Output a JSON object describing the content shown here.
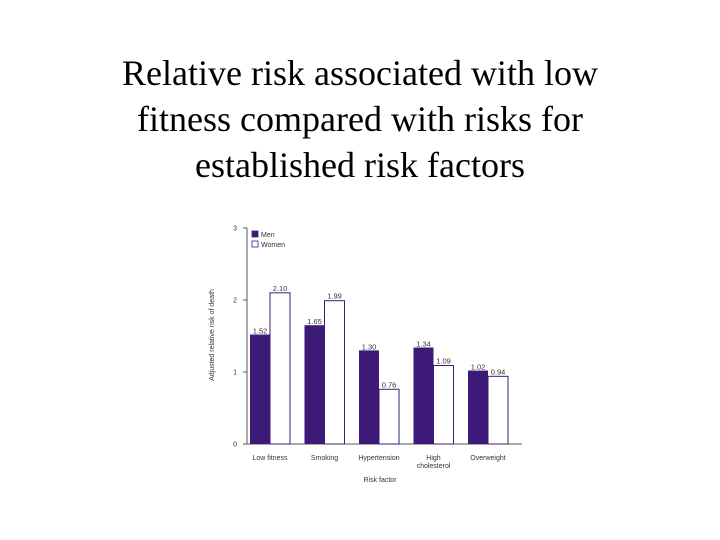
{
  "slide": {
    "title_lines": [
      "Relative risk associated with low",
      "fitness compared with risks for",
      "established risk factors"
    ]
  },
  "chart_data": {
    "type": "bar",
    "categories": [
      [
        "Low fitness"
      ],
      [
        "Smoking"
      ],
      [
        "Hypertension"
      ],
      [
        "High",
        "cholesterol"
      ],
      [
        "Overweight"
      ]
    ],
    "series": [
      {
        "name": "Men",
        "values": [
          1.52,
          1.65,
          1.3,
          1.34,
          1.02
        ],
        "labels": [
          "1.52",
          "1.65",
          "1.30",
          "1.34",
          "1.02"
        ],
        "color": "#3d1a78"
      },
      {
        "name": "Women",
        "values": [
          2.1,
          1.99,
          0.76,
          1.09,
          0.94
        ],
        "labels": [
          "2.10",
          "1.99",
          "0.76",
          "1.09",
          "0.94"
        ],
        "color": "#ffffff"
      }
    ],
    "xlabel": "Risk factor",
    "ylabel": "Adjusted relative risk of death",
    "ylim": [
      0,
      3
    ],
    "yticks": [
      "0",
      "1",
      "2",
      "3"
    ],
    "legend_position": "top-left",
    "grid": false
  }
}
